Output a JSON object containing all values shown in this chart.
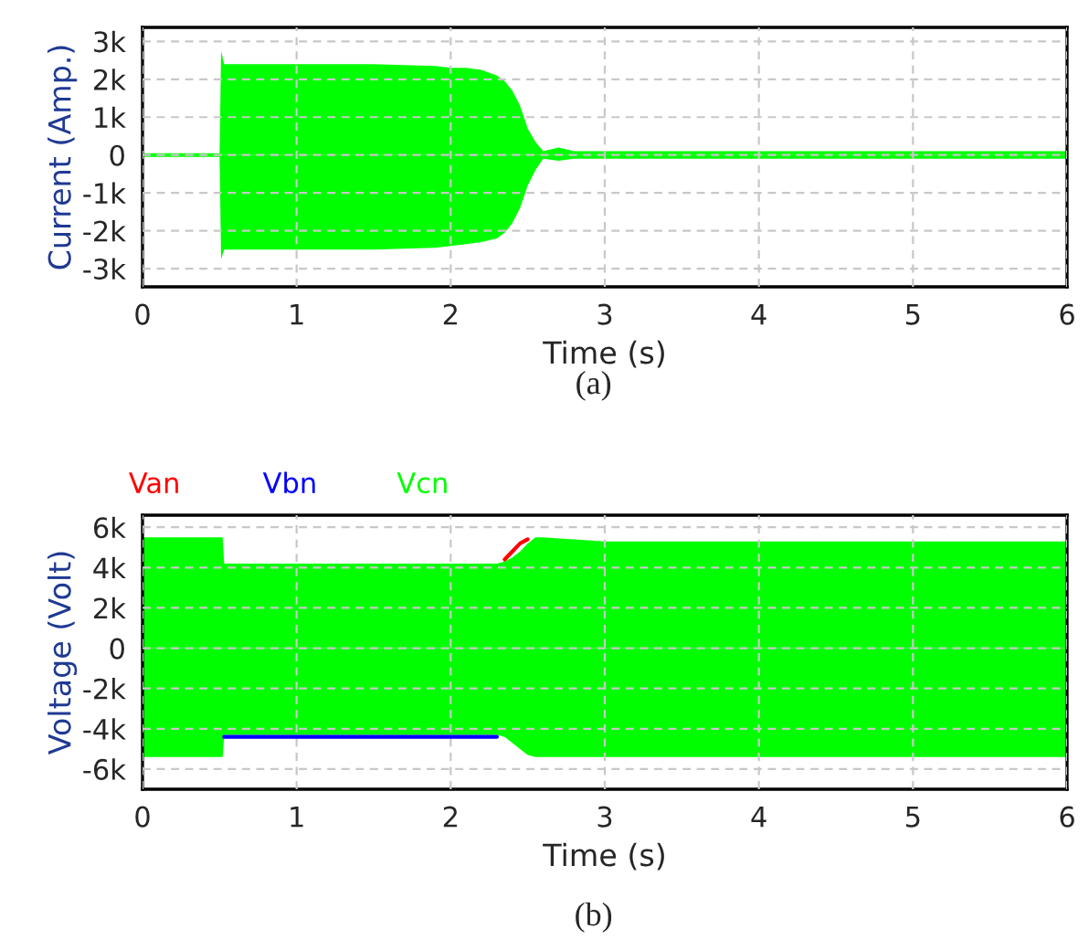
{
  "chart_data": [
    {
      "type": "area",
      "xlabel": "Time (s)",
      "ylabel": "Current (Amp.)",
      "annotations": [
        "(a)"
      ],
      "xlim": [
        0,
        6
      ],
      "ylim": [
        -3480,
        3370
      ],
      "xticks": [
        0,
        1,
        2,
        3,
        4,
        5,
        6
      ],
      "yticks": [
        {
          "value": -3000,
          "label": "-3k"
        },
        {
          "value": -2000,
          "label": "-2k"
        },
        {
          "value": -1000,
          "label": "-1k"
        },
        0,
        {
          "value": 1000,
          "label": "1k"
        },
        {
          "value": 2000,
          "label": "2k"
        },
        {
          "value": 3000,
          "label": "3k"
        }
      ],
      "grid": true,
      "series": [
        {
          "color": "#00ff00",
          "x": [
            0,
            0.5,
            0.51,
            0.53,
            1.0,
            1.5,
            1.9,
            2.0,
            2.1,
            2.2,
            2.3,
            2.35,
            2.4,
            2.45,
            2.5,
            2.55,
            2.6,
            2.7,
            2.8,
            3.0,
            4.0,
            5.0,
            6.0
          ],
          "values": [
            50,
            50,
            2750,
            2400,
            2400,
            2400,
            2350,
            2300,
            2300,
            2250,
            2100,
            1950,
            1700,
            1300,
            700,
            350,
            100,
            200,
            100,
            100,
            100,
            100,
            100
          ]
        },
        {
          "color": "#00fe00",
          "x": [
            0,
            0.5,
            0.51,
            0.53,
            1.0,
            1.5,
            1.9,
            2.0,
            2.1,
            2.2,
            2.3,
            2.35,
            2.4,
            2.45,
            2.5,
            2.55,
            2.6,
            2.7,
            2.8,
            3.0,
            4.0,
            5.0,
            6.0
          ],
          "values": [
            -50,
            -50,
            -2750,
            -2500,
            -2500,
            -2500,
            -2450,
            -2400,
            -2350,
            -2300,
            -2200,
            -2050,
            -1800,
            -1400,
            -800,
            -400,
            -100,
            -150,
            -100,
            -100,
            -100,
            -100,
            -100
          ]
        }
      ]
    },
    {
      "type": "area",
      "xlabel": "Time (s)",
      "ylabel": "Voltage (Volt)",
      "annotations": [
        "(b)"
      ],
      "xlim": [
        0,
        6
      ],
      "ylim": [
        -7000,
        6600
      ],
      "xticks": [
        0,
        1,
        2,
        3,
        4,
        5,
        6
      ],
      "yticks": [
        {
          "value": -6000,
          "label": "-6k"
        },
        {
          "value": -4000,
          "label": "-4k"
        },
        {
          "value": -2000,
          "label": "-2k"
        },
        0,
        {
          "value": 2000,
          "label": "2k"
        },
        {
          "value": 4000,
          "label": "4k"
        },
        {
          "value": 6000,
          "label": "6k"
        }
      ],
      "grid": true,
      "series": [
        {
          "name": "Van",
          "type": "line",
          "color": "#ff0000",
          "x": [
            2.35,
            2.4,
            2.45,
            2.5
          ],
          "values": [
            4400,
            4800,
            5200,
            5400
          ]
        },
        {
          "name": "Vbn",
          "type": "line",
          "color": "#0000ff",
          "x": [
            0.53,
            1.0,
            1.5,
            2.0,
            2.3
          ],
          "values": [
            -4400,
            -4400,
            -4400,
            -4400,
            -4400
          ]
        },
        {
          "name": "Vcn",
          "color": "#00ff00",
          "x": [
            0,
            0.52,
            0.53,
            2.3,
            2.35,
            2.4,
            2.45,
            2.5,
            2.55,
            2.6,
            3.0,
            6.0
          ],
          "values": [
            5500,
            5500,
            4200,
            4200,
            4300,
            4500,
            4800,
            5200,
            5500,
            5500,
            5300,
            5300
          ]
        },
        {
          "color": "#00fe00",
          "x": [
            0,
            0.52,
            0.53,
            2.3,
            2.35,
            2.4,
            2.45,
            2.5,
            2.55,
            2.6,
            3.0,
            6.0
          ],
          "values": [
            -5400,
            -5400,
            -4300,
            -4300,
            -4400,
            -4700,
            -5000,
            -5300,
            -5400,
            -5400,
            -5400,
            -5400
          ]
        }
      ]
    }
  ]
}
